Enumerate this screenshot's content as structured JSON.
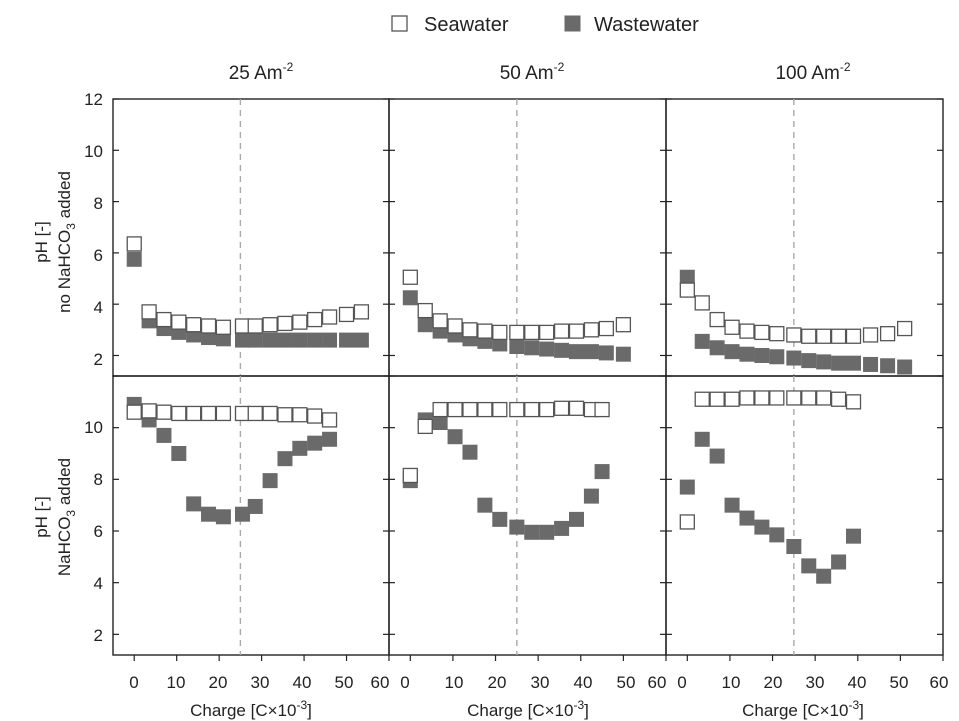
{
  "chart_data": {
    "type": "scatter",
    "legend": {
      "placement": "top-center",
      "entries": [
        {
          "label": "Seawater",
          "style": "open-square"
        },
        {
          "label": "Wastewater",
          "style": "filled-square"
        }
      ]
    },
    "columns": [
      {
        "title_main": "25 Am",
        "title_sup": "-2"
      },
      {
        "title_main": "50 Am",
        "title_sup": "-2"
      },
      {
        "title_main": "100 Am",
        "title_sup": "-2"
      }
    ],
    "row_labels": [
      {
        "line1": "pH [-]",
        "line2_pre": "no NaHCO",
        "line2_sub": "3",
        "line2_post": " added"
      },
      {
        "line1": "pH [-]",
        "line2_pre": "NaHCO",
        "line2_sub": "3",
        "line2_post": " added"
      }
    ],
    "xlabel": {
      "pre": "Charge [C×10",
      "sup": "-3",
      "post": "]"
    },
    "xlim": [
      -5,
      60
    ],
    "xticks": [
      "0",
      "10",
      "20",
      "30",
      "40",
      "50",
      "60"
    ],
    "ylim": [
      1.2,
      12
    ],
    "yticks": [
      "2",
      "4",
      "6",
      "8",
      "10",
      "12"
    ],
    "yticks_lower": [
      "2",
      "4",
      "6",
      "8",
      "10"
    ],
    "reference_line_x": 25,
    "colors": {
      "seawater_edge": "#555555",
      "wastewater_fill": "#6a6a6a",
      "reference_line": "#aaaaaa"
    },
    "panels": [
      {
        "row": 0,
        "col": 0,
        "seawater": [
          [
            0,
            6.35
          ],
          [
            3.5,
            3.7
          ],
          [
            7,
            3.4
          ],
          [
            10.5,
            3.3
          ],
          [
            14,
            3.2
          ],
          [
            17.5,
            3.15
          ],
          [
            21,
            3.1
          ],
          [
            25.5,
            3.15
          ],
          [
            28.5,
            3.15
          ],
          [
            32,
            3.2
          ],
          [
            35.5,
            3.25
          ],
          [
            39,
            3.3
          ],
          [
            42.5,
            3.4
          ],
          [
            46,
            3.5
          ],
          [
            50,
            3.6
          ],
          [
            53.5,
            3.7
          ]
        ],
        "wastewater": [
          [
            0,
            5.75
          ],
          [
            3.5,
            3.35
          ],
          [
            7,
            3.05
          ],
          [
            10.5,
            2.9
          ],
          [
            14,
            2.8
          ],
          [
            17.5,
            2.7
          ],
          [
            21,
            2.65
          ],
          [
            25.5,
            2.6
          ],
          [
            28.5,
            2.6
          ],
          [
            32,
            2.6
          ],
          [
            35.5,
            2.6
          ],
          [
            39,
            2.6
          ],
          [
            42.5,
            2.6
          ],
          [
            46,
            2.6
          ],
          [
            50,
            2.6
          ],
          [
            53.5,
            2.6
          ]
        ]
      },
      {
        "row": 0,
        "col": 1,
        "seawater": [
          [
            0,
            5.05
          ],
          [
            3.5,
            3.75
          ],
          [
            7,
            3.35
          ],
          [
            10.5,
            3.15
          ],
          [
            14,
            3.0
          ],
          [
            17.5,
            2.95
          ],
          [
            21,
            2.9
          ],
          [
            25,
            2.9
          ],
          [
            28.5,
            2.9
          ],
          [
            32,
            2.9
          ],
          [
            35.5,
            2.95
          ],
          [
            39,
            2.95
          ],
          [
            42.5,
            3.0
          ],
          [
            46,
            3.05
          ],
          [
            50,
            3.2
          ]
        ],
        "wastewater": [
          [
            0,
            4.25
          ],
          [
            3.5,
            3.2
          ],
          [
            7,
            2.95
          ],
          [
            10.5,
            2.8
          ],
          [
            14,
            2.65
          ],
          [
            17.5,
            2.55
          ],
          [
            21,
            2.45
          ],
          [
            25,
            2.35
          ],
          [
            28.5,
            2.3
          ],
          [
            32,
            2.25
          ],
          [
            35.5,
            2.2
          ],
          [
            39,
            2.15
          ],
          [
            42.5,
            2.15
          ],
          [
            46,
            2.1
          ],
          [
            50,
            2.05
          ]
        ]
      },
      {
        "row": 0,
        "col": 2,
        "seawater": [
          [
            0,
            4.55
          ],
          [
            3.5,
            4.05
          ],
          [
            7,
            3.4
          ],
          [
            10.5,
            3.1
          ],
          [
            14,
            2.95
          ],
          [
            17.5,
            2.9
          ],
          [
            21,
            2.85
          ],
          [
            25,
            2.8
          ],
          [
            28.5,
            2.75
          ],
          [
            32,
            2.75
          ],
          [
            35.5,
            2.75
          ],
          [
            39,
            2.75
          ],
          [
            43,
            2.8
          ],
          [
            47,
            2.85
          ],
          [
            51,
            3.05
          ]
        ],
        "wastewater": [
          [
            0,
            5.05
          ],
          [
            3.5,
            2.55
          ],
          [
            7,
            2.3
          ],
          [
            10.5,
            2.15
          ],
          [
            14,
            2.05
          ],
          [
            17.5,
            2.0
          ],
          [
            21,
            1.95
          ],
          [
            25,
            1.9
          ],
          [
            28.5,
            1.8
          ],
          [
            32,
            1.75
          ],
          [
            35.5,
            1.7
          ],
          [
            39,
            1.7
          ],
          [
            43,
            1.65
          ],
          [
            47,
            1.6
          ],
          [
            51,
            1.55
          ]
        ]
      },
      {
        "row": 1,
        "col": 0,
        "seawater": [
          [
            0,
            10.6
          ],
          [
            3.5,
            10.65
          ],
          [
            7,
            10.6
          ],
          [
            10.5,
            10.55
          ],
          [
            14,
            10.55
          ],
          [
            17.5,
            10.55
          ],
          [
            21,
            10.55
          ],
          [
            25.5,
            10.55
          ],
          [
            28.5,
            10.55
          ],
          [
            32,
            10.55
          ],
          [
            35.5,
            10.5
          ],
          [
            39,
            10.5
          ],
          [
            42.5,
            10.45
          ],
          [
            46,
            10.3
          ]
        ],
        "wastewater": [
          [
            0,
            10.9
          ],
          [
            3.5,
            10.3
          ],
          [
            7,
            9.7
          ],
          [
            10.5,
            9.0
          ],
          [
            14,
            7.05
          ],
          [
            17.5,
            6.65
          ],
          [
            21,
            6.55
          ],
          [
            25.5,
            6.65
          ],
          [
            28.5,
            6.95
          ],
          [
            32,
            7.95
          ],
          [
            35.5,
            8.8
          ],
          [
            39,
            9.2
          ],
          [
            42.5,
            9.4
          ],
          [
            46,
            9.55
          ]
        ]
      },
      {
        "row": 1,
        "col": 1,
        "seawater": [
          [
            0,
            8.15
          ],
          [
            3.5,
            10.05
          ],
          [
            7,
            10.7
          ],
          [
            10.5,
            10.7
          ],
          [
            14,
            10.7
          ],
          [
            17.5,
            10.7
          ],
          [
            21,
            10.7
          ],
          [
            25,
            10.7
          ],
          [
            28.5,
            10.7
          ],
          [
            32,
            10.7
          ],
          [
            35.5,
            10.75
          ],
          [
            39,
            10.75
          ],
          [
            42.5,
            10.7
          ],
          [
            45,
            10.7
          ]
        ],
        "wastewater": [
          [
            0,
            7.95
          ],
          [
            3.5,
            10.3
          ],
          [
            7,
            10.2
          ],
          [
            10.5,
            9.65
          ],
          [
            14,
            9.05
          ],
          [
            17.5,
            7.0
          ],
          [
            21,
            6.45
          ],
          [
            25,
            6.15
          ],
          [
            28.5,
            5.95
          ],
          [
            32,
            5.95
          ],
          [
            35.5,
            6.1
          ],
          [
            39,
            6.45
          ],
          [
            42.5,
            7.35
          ],
          [
            45,
            8.3
          ]
        ]
      },
      {
        "row": 1,
        "col": 2,
        "seawater": [
          [
            0,
            6.35
          ],
          [
            3.5,
            11.1
          ],
          [
            7,
            11.1
          ],
          [
            10.5,
            11.1
          ],
          [
            14,
            11.15
          ],
          [
            17.5,
            11.15
          ],
          [
            21,
            11.15
          ],
          [
            25,
            11.15
          ],
          [
            28.5,
            11.15
          ],
          [
            32,
            11.15
          ],
          [
            35.5,
            11.1
          ],
          [
            39,
            11.0
          ]
        ],
        "wastewater": [
          [
            0,
            7.7
          ],
          [
            3.5,
            9.55
          ],
          [
            7,
            8.9
          ],
          [
            10.5,
            7.0
          ],
          [
            14,
            6.5
          ],
          [
            17.5,
            6.15
          ],
          [
            21,
            5.85
          ],
          [
            25,
            5.4
          ],
          [
            28.5,
            4.65
          ],
          [
            32,
            4.25
          ],
          [
            35.5,
            4.8
          ],
          [
            39,
            5.8
          ]
        ]
      }
    ]
  }
}
